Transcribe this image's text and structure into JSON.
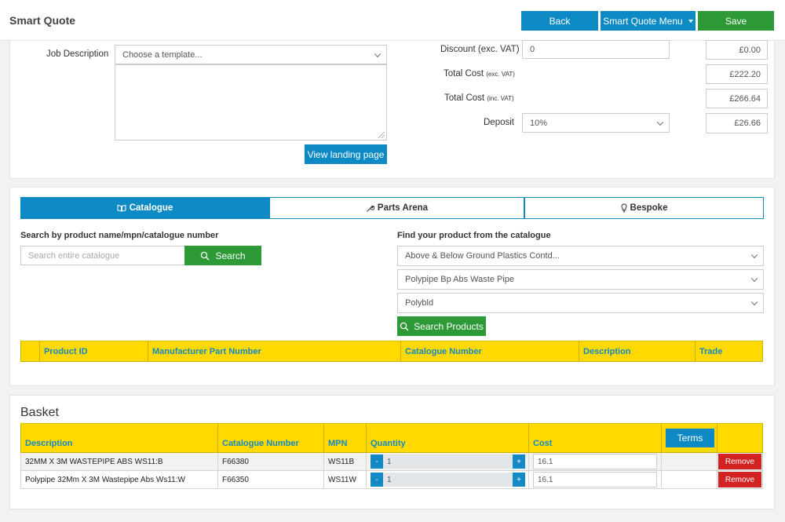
{
  "header": {
    "title": "Smart Quote",
    "back_label": "Back",
    "menu_label": "Smart Quote Menu",
    "save_label": "Save"
  },
  "job": {
    "description_label": "Job Description",
    "template_select": "Choose a template...",
    "view_landing_label": "View landing page"
  },
  "totals": {
    "discount_label": "Discount (exc. VAT)",
    "discount_input": "0",
    "discount_value": "£0.00",
    "total_exc_label": "Total Cost",
    "total_exc_note": "(exc. VAT)",
    "total_exc_value": "£222.20",
    "total_inc_label": "Total Cost",
    "total_inc_note": "(inc. VAT)",
    "total_inc_value": "£266.64",
    "deposit_label": "Deposit",
    "deposit_select": "10%",
    "deposit_value": "£26.66"
  },
  "tabs": [
    {
      "label": "Catalogue",
      "icon": "book-icon",
      "active": true
    },
    {
      "label": "Parts Arena",
      "icon": "wrench-icon",
      "active": false
    },
    {
      "label": "Bespoke",
      "icon": "bulb-icon",
      "active": false
    }
  ],
  "search": {
    "label": "Search by product name/mpn/catalogue number",
    "placeholder": "Search entire catalogue",
    "button_label": "Search"
  },
  "catalogue": {
    "label": "Find your product from the catalogue",
    "select1": "Above & Below Ground Plastics Contd...",
    "select2": "Polypipe Bp Abs Waste Pipe",
    "select3": "Polybld",
    "button_label": "Search Products"
  },
  "results_table": {
    "columns": [
      "",
      "Product ID",
      "Manufacturer Part Number",
      "Catalogue Number",
      "Description",
      "Trade"
    ]
  },
  "basket": {
    "title": "Basket",
    "columns": [
      "Description",
      "Catalogue Number",
      "MPN",
      "Quantity",
      "Cost"
    ],
    "terms_label": "Terms",
    "remove_label": "Remove",
    "minus_label": "-",
    "plus_label": "+",
    "rows": [
      {
        "description": "32MM X 3M WASTEPIPE ABS WS11:B",
        "catalogue_number": "F66380",
        "mpn": "WS11B",
        "quantity": "1",
        "cost": "16.1"
      },
      {
        "description": "Polypipe 32Mm X 3M Wastepipe Abs Ws11:W",
        "catalogue_number": "F66350",
        "mpn": "WS11W",
        "quantity": "1",
        "cost": "16.1"
      }
    ]
  },
  "colors": {
    "accent_blue": "#0d8ac4",
    "action_green": "#2d9a37",
    "table_header_yellow": "#ffd900",
    "remove_red": "#d32222"
  }
}
